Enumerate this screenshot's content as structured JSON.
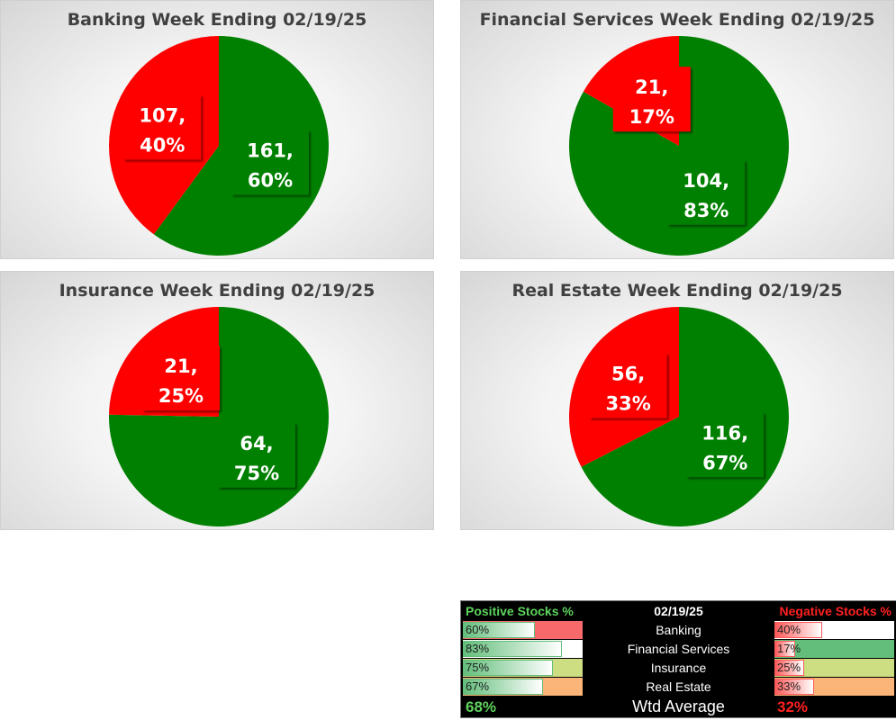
{
  "chart_data": [
    {
      "type": "pie",
      "title": "Banking Week Ending 02/19/25",
      "slices": [
        {
          "name": "Positive",
          "value": 161,
          "pct": "60%",
          "color": "#008000"
        },
        {
          "name": "Negative",
          "value": 107,
          "pct": "40%",
          "color": "#ff0000"
        }
      ]
    },
    {
      "type": "pie",
      "title": "Financial Services Week Ending 02/19/25",
      "slices": [
        {
          "name": "Positive",
          "value": 104,
          "pct": "83%",
          "color": "#008000"
        },
        {
          "name": "Negative",
          "value": 21,
          "pct": "17%",
          "color": "#ff0000"
        }
      ]
    },
    {
      "type": "pie",
      "title": "Insurance Week Ending 02/19/25",
      "slices": [
        {
          "name": "Positive",
          "value": 64,
          "pct": "75%",
          "color": "#008000"
        },
        {
          "name": "Negative",
          "value": 21,
          "pct": "25%",
          "color": "#ff0000"
        }
      ]
    },
    {
      "type": "pie",
      "title": "Real Estate Week Ending 02/19/25",
      "slices": [
        {
          "name": "Positive",
          "value": 116,
          "pct": "67%",
          "color": "#008000"
        },
        {
          "name": "Negative",
          "value": 56,
          "pct": "33%",
          "color": "#ff0000"
        }
      ]
    }
  ],
  "summary": {
    "positive_header": "Positive Stocks %",
    "date": "02/19/25",
    "negative_header": "Negative Stocks %",
    "rows": [
      {
        "name": "Banking",
        "pos": "60%",
        "neg": "40%",
        "pos_value": 0.6,
        "neg_value": 0.4,
        "pos_fill": "#f8696b",
        "neg_fill": "#ffffff"
      },
      {
        "name": "Financial Services",
        "pos": "83%",
        "neg": "17%",
        "pos_value": 0.83,
        "neg_value": 0.17,
        "pos_fill": "#ffffff",
        "neg_fill": "#63be7b"
      },
      {
        "name": "Insurance",
        "pos": "75%",
        "neg": "25%",
        "pos_value": 0.75,
        "neg_value": 0.25,
        "pos_fill": "#cddd82",
        "neg_fill": "#cddd82"
      },
      {
        "name": "Real Estate",
        "pos": "67%",
        "neg": "33%",
        "pos_value": 0.67,
        "neg_value": 0.33,
        "pos_fill": "#fcb579",
        "neg_fill": "#fcb579"
      }
    ],
    "avg_label": "Wtd Average",
    "avg_pos": "68%",
    "avg_neg": "32%"
  }
}
